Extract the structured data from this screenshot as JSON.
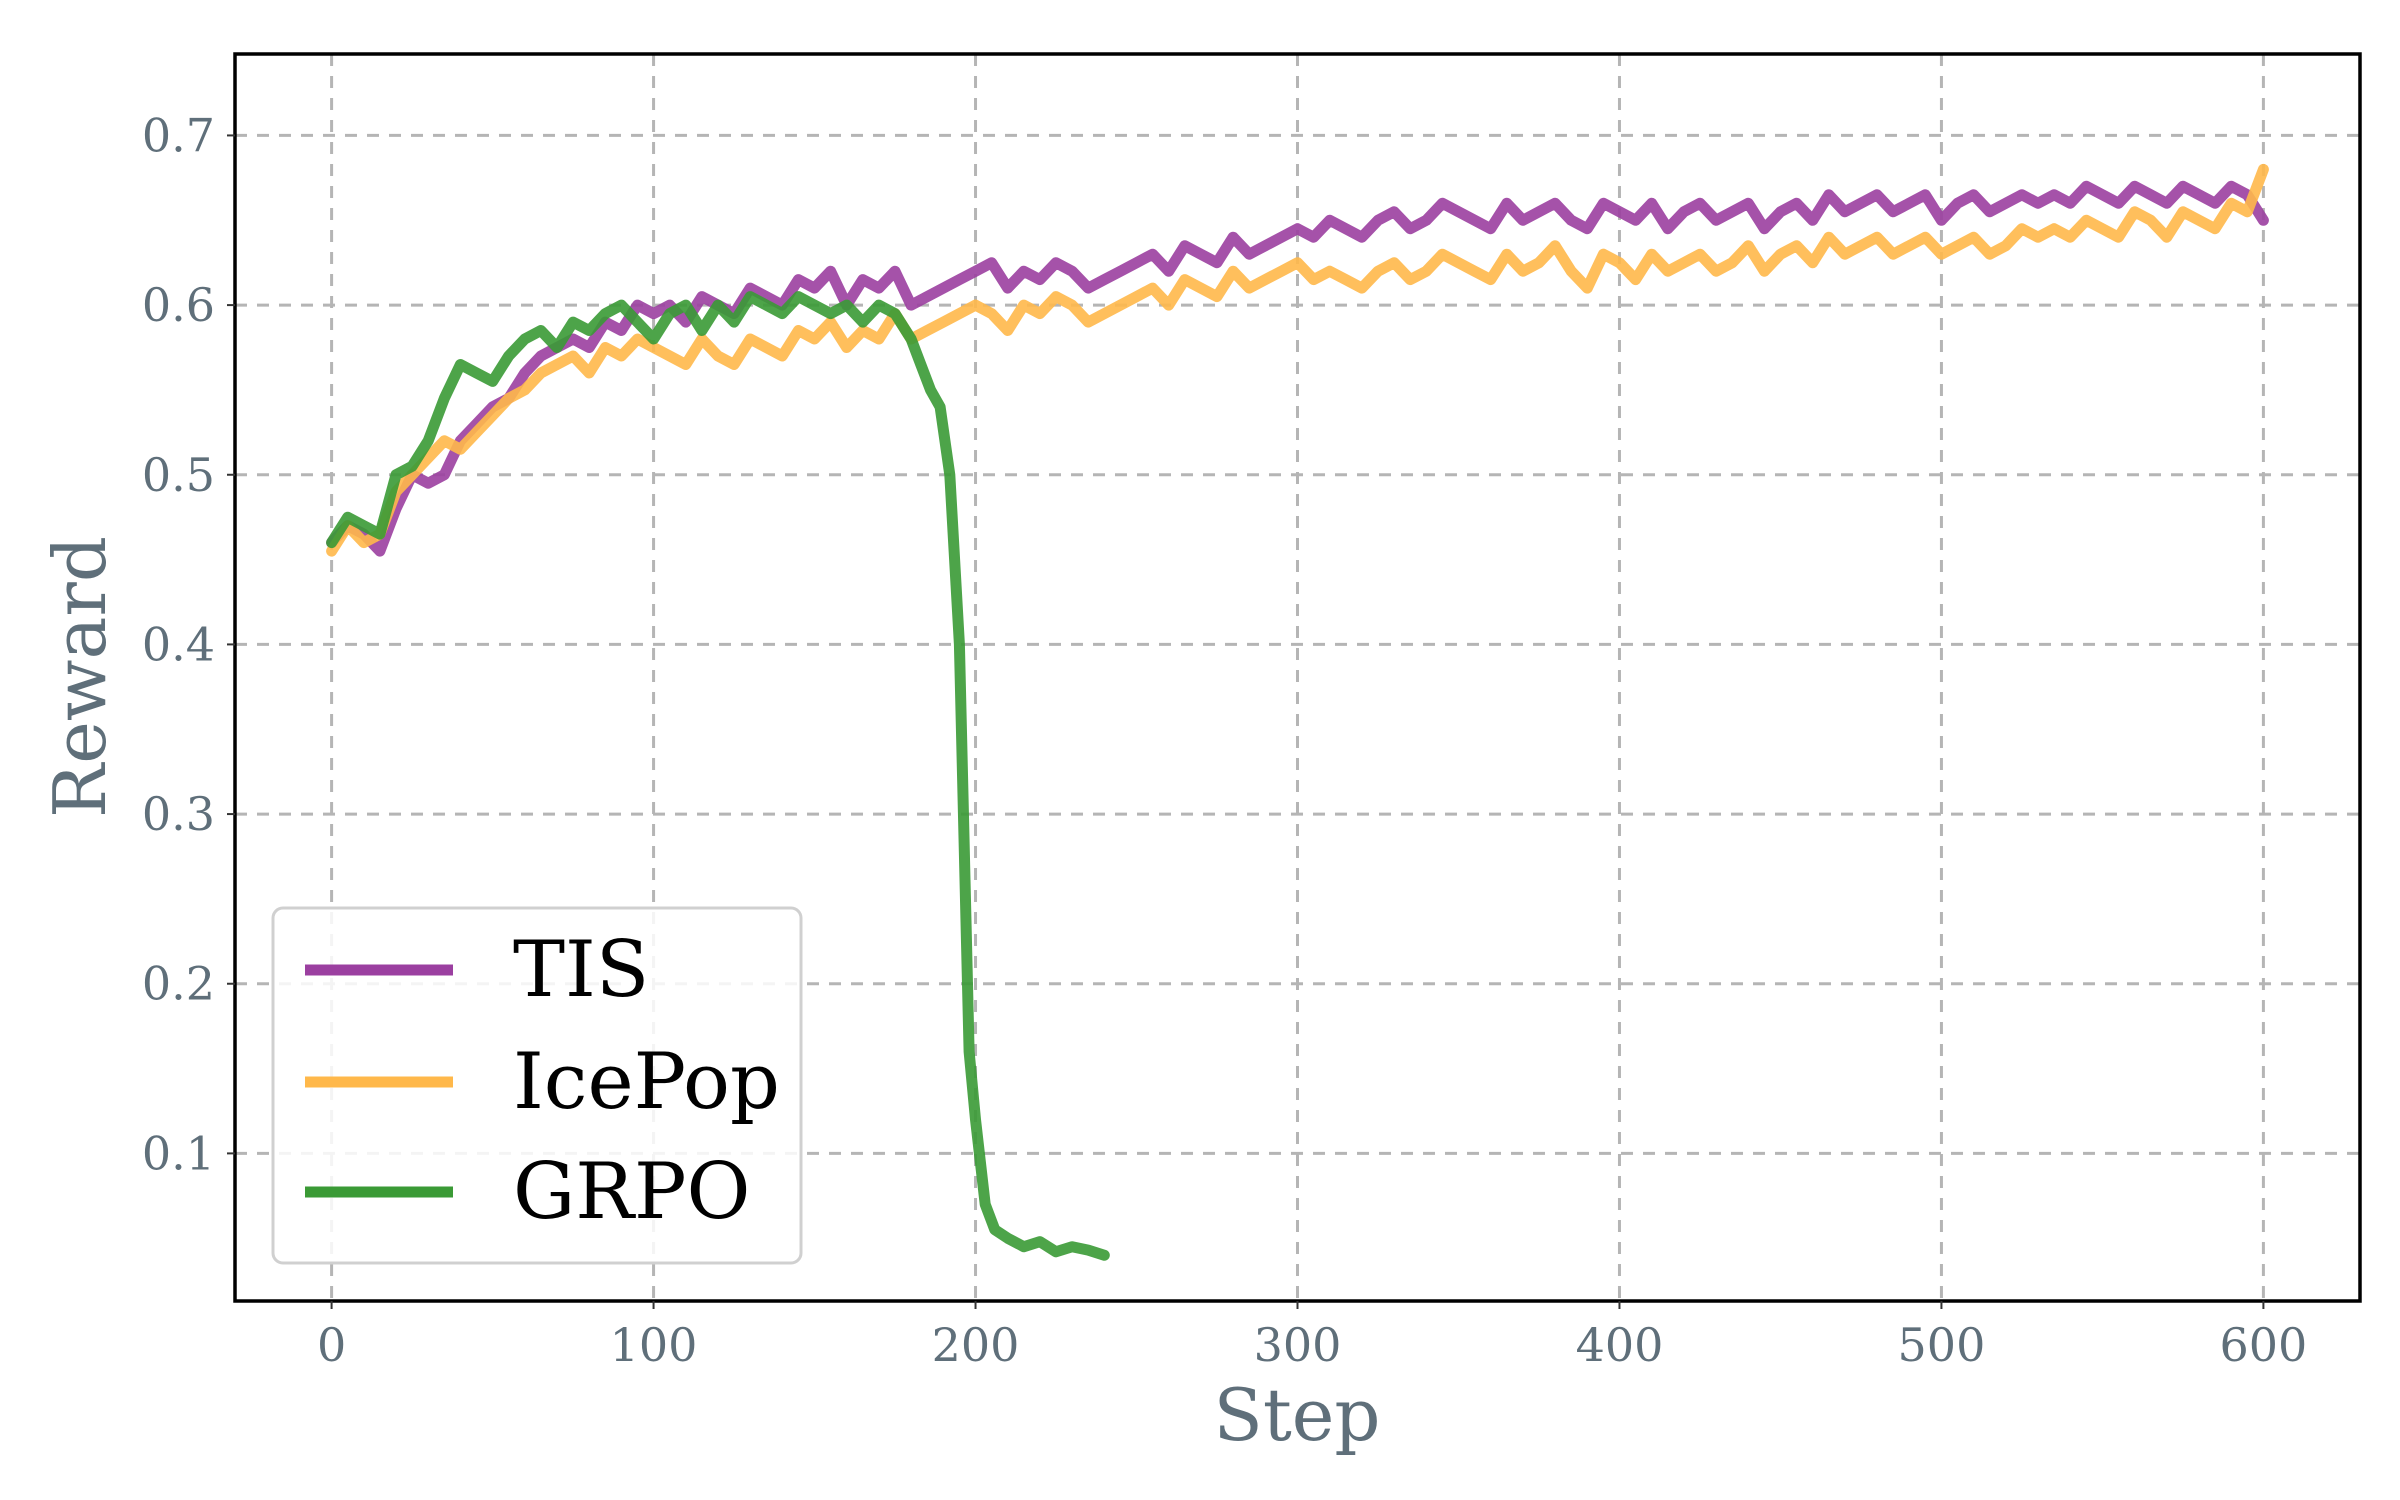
{
  "chart_data": {
    "type": "line",
    "title": "",
    "xlabel": "Step",
    "ylabel": "Reward",
    "xlim": [
      -30,
      630
    ],
    "ylim": [
      0.013,
      0.748
    ],
    "xticks": [
      0,
      100,
      200,
      300,
      400,
      500,
      600
    ],
    "yticks": [
      0.1,
      0.2,
      0.3,
      0.4,
      0.5,
      0.6,
      0.7
    ],
    "xtick_labels": [
      "0",
      "100",
      "200",
      "300",
      "400",
      "500",
      "600"
    ],
    "ytick_labels": [
      "0.1",
      "0.2",
      "0.3",
      "0.4",
      "0.5",
      "0.6",
      "0.7"
    ],
    "grid": true,
    "legend_position": "lower-left",
    "series": [
      {
        "name": "TIS",
        "color": "#9b3fa0",
        "x": [
          0,
          5,
          10,
          15,
          20,
          25,
          30,
          35,
          40,
          45,
          50,
          55,
          60,
          65,
          70,
          75,
          80,
          85,
          90,
          95,
          100,
          105,
          110,
          115,
          120,
          125,
          130,
          135,
          140,
          145,
          150,
          155,
          160,
          165,
          170,
          175,
          180,
          185,
          190,
          195,
          200,
          205,
          210,
          215,
          220,
          225,
          230,
          235,
          240,
          245,
          250,
          255,
          260,
          265,
          270,
          275,
          280,
          285,
          290,
          295,
          300,
          305,
          310,
          315,
          320,
          325,
          330,
          335,
          340,
          345,
          350,
          355,
          360,
          365,
          370,
          375,
          380,
          385,
          390,
          395,
          400,
          405,
          410,
          415,
          420,
          425,
          430,
          435,
          440,
          445,
          450,
          455,
          460,
          465,
          470,
          475,
          480,
          485,
          490,
          495,
          500,
          505,
          510,
          515,
          520,
          525,
          530,
          535,
          540,
          545,
          550,
          555,
          560,
          565,
          570,
          575,
          580,
          585,
          590,
          595,
          600
        ],
        "values": [
          0.46,
          0.47,
          0.465,
          0.455,
          0.48,
          0.5,
          0.495,
          0.5,
          0.52,
          0.53,
          0.54,
          0.545,
          0.56,
          0.57,
          0.575,
          0.58,
          0.575,
          0.59,
          0.585,
          0.6,
          0.595,
          0.6,
          0.59,
          0.605,
          0.6,
          0.595,
          0.61,
          0.605,
          0.6,
          0.615,
          0.61,
          0.62,
          0.6,
          0.615,
          0.61,
          0.62,
          0.6,
          0.605,
          0.61,
          0.615,
          0.62,
          0.625,
          0.61,
          0.62,
          0.615,
          0.625,
          0.62,
          0.61,
          0.615,
          0.62,
          0.625,
          0.63,
          0.62,
          0.635,
          0.63,
          0.625,
          0.64,
          0.63,
          0.635,
          0.64,
          0.645,
          0.64,
          0.65,
          0.645,
          0.64,
          0.65,
          0.655,
          0.645,
          0.65,
          0.66,
          0.655,
          0.65,
          0.645,
          0.66,
          0.65,
          0.655,
          0.66,
          0.65,
          0.645,
          0.66,
          0.655,
          0.65,
          0.66,
          0.645,
          0.655,
          0.66,
          0.65,
          0.655,
          0.66,
          0.645,
          0.655,
          0.66,
          0.65,
          0.665,
          0.655,
          0.66,
          0.665,
          0.655,
          0.66,
          0.665,
          0.65,
          0.66,
          0.665,
          0.655,
          0.66,
          0.665,
          0.66,
          0.665,
          0.66,
          0.67,
          0.665,
          0.66,
          0.67,
          0.665,
          0.66,
          0.67,
          0.665,
          0.66,
          0.67,
          0.665,
          0.65
        ]
      },
      {
        "name": "IcePop",
        "color": "#ffb84a",
        "x": [
          0,
          5,
          10,
          15,
          20,
          25,
          30,
          35,
          40,
          45,
          50,
          55,
          60,
          65,
          70,
          75,
          80,
          85,
          90,
          95,
          100,
          105,
          110,
          115,
          120,
          125,
          130,
          135,
          140,
          145,
          150,
          155,
          160,
          165,
          170,
          175,
          180,
          185,
          190,
          195,
          200,
          205,
          210,
          215,
          220,
          225,
          230,
          235,
          240,
          245,
          250,
          255,
          260,
          265,
          270,
          275,
          280,
          285,
          290,
          295,
          300,
          305,
          310,
          315,
          320,
          325,
          330,
          335,
          340,
          345,
          350,
          355,
          360,
          365,
          370,
          375,
          380,
          385,
          390,
          395,
          400,
          405,
          410,
          415,
          420,
          425,
          430,
          435,
          440,
          445,
          450,
          455,
          460,
          465,
          470,
          475,
          480,
          485,
          490,
          495,
          500,
          505,
          510,
          515,
          520,
          525,
          530,
          535,
          540,
          545,
          550,
          555,
          560,
          565,
          570,
          575,
          580,
          585,
          590,
          595,
          600
        ],
        "values": [
          0.455,
          0.47,
          0.46,
          0.465,
          0.49,
          0.5,
          0.51,
          0.52,
          0.515,
          0.525,
          0.535,
          0.545,
          0.55,
          0.56,
          0.565,
          0.57,
          0.56,
          0.575,
          0.57,
          0.58,
          0.575,
          0.57,
          0.565,
          0.58,
          0.57,
          0.565,
          0.58,
          0.575,
          0.57,
          0.585,
          0.58,
          0.59,
          0.575,
          0.585,
          0.58,
          0.595,
          0.58,
          0.585,
          0.59,
          0.595,
          0.6,
          0.595,
          0.585,
          0.6,
          0.595,
          0.605,
          0.6,
          0.59,
          0.595,
          0.6,
          0.605,
          0.61,
          0.6,
          0.615,
          0.61,
          0.605,
          0.62,
          0.61,
          0.615,
          0.62,
          0.625,
          0.615,
          0.62,
          0.615,
          0.61,
          0.62,
          0.625,
          0.615,
          0.62,
          0.63,
          0.625,
          0.62,
          0.615,
          0.63,
          0.62,
          0.625,
          0.635,
          0.62,
          0.61,
          0.63,
          0.625,
          0.615,
          0.63,
          0.62,
          0.625,
          0.63,
          0.62,
          0.625,
          0.635,
          0.62,
          0.63,
          0.635,
          0.625,
          0.64,
          0.63,
          0.635,
          0.64,
          0.63,
          0.635,
          0.64,
          0.63,
          0.635,
          0.64,
          0.63,
          0.635,
          0.645,
          0.64,
          0.645,
          0.64,
          0.65,
          0.645,
          0.64,
          0.655,
          0.65,
          0.64,
          0.655,
          0.65,
          0.645,
          0.66,
          0.655,
          0.68
        ]
      },
      {
        "name": "GRPO",
        "color": "#3a9a35",
        "x": [
          0,
          5,
          10,
          15,
          20,
          25,
          30,
          35,
          40,
          45,
          50,
          55,
          60,
          65,
          70,
          75,
          80,
          85,
          90,
          95,
          100,
          105,
          110,
          115,
          120,
          125,
          130,
          135,
          140,
          145,
          150,
          155,
          160,
          165,
          170,
          175,
          180,
          183,
          186,
          189,
          192,
          195,
          198,
          200,
          203,
          206,
          210,
          215,
          220,
          225,
          230,
          235,
          240
        ],
        "values": [
          0.46,
          0.475,
          0.47,
          0.465,
          0.5,
          0.505,
          0.52,
          0.545,
          0.565,
          0.56,
          0.555,
          0.57,
          0.58,
          0.585,
          0.575,
          0.59,
          0.585,
          0.595,
          0.6,
          0.59,
          0.58,
          0.595,
          0.6,
          0.585,
          0.6,
          0.59,
          0.605,
          0.6,
          0.595,
          0.605,
          0.6,
          0.595,
          0.6,
          0.59,
          0.6,
          0.595,
          0.58,
          0.565,
          0.55,
          0.54,
          0.5,
          0.4,
          0.16,
          0.12,
          0.07,
          0.055,
          0.05,
          0.045,
          0.048,
          0.042,
          0.045,
          0.043,
          0.04
        ]
      }
    ]
  }
}
